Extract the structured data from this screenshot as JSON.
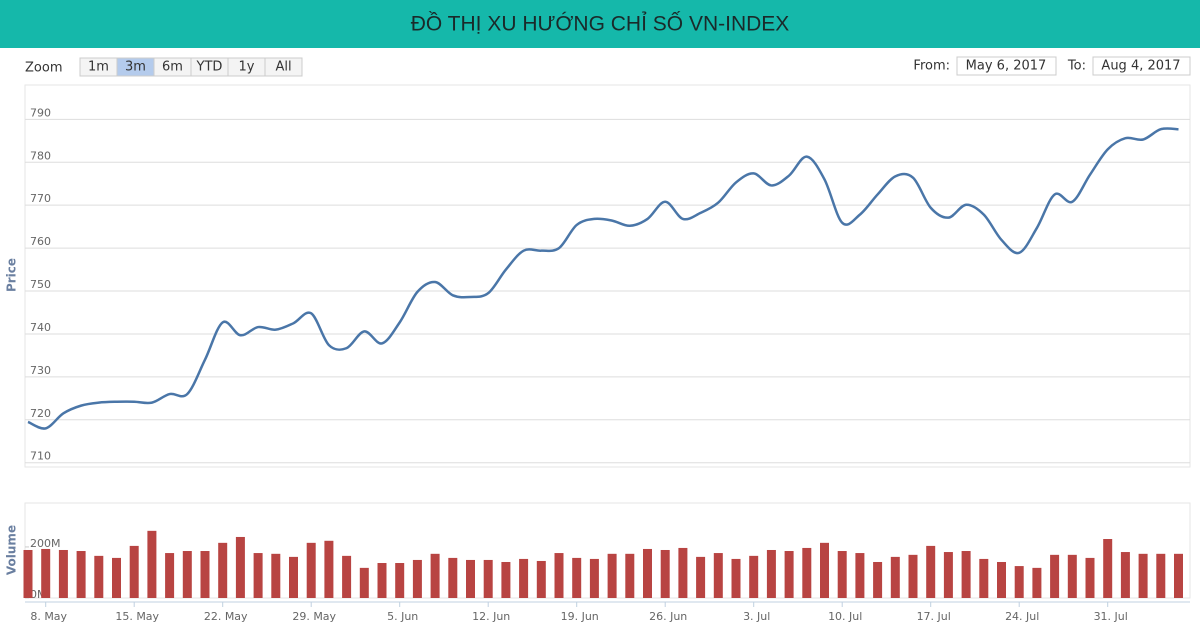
{
  "header": {
    "title": "ĐỒ THỊ XU HƯỚNG CHỈ SỐ VN-INDEX"
  },
  "toolbar": {
    "zoom_label": "Zoom",
    "zoom_buttons": [
      "1m",
      "3m",
      "6m",
      "YTD",
      "1y",
      "All"
    ],
    "selected": 1,
    "from_label": "From:",
    "from_date": "May 6, 2017",
    "to_label": "To:",
    "to_date": "Aug 4, 2017"
  },
  "chart_data": [
    {
      "type": "line",
      "y_label": "Price",
      "color": "#4a76a8",
      "grid": true,
      "ylim": [
        709,
        798
      ],
      "yticks": [
        710,
        720,
        730,
        740,
        750,
        760,
        770,
        780,
        790
      ],
      "values": [
        719.5,
        718,
        721.5,
        723.3,
        724,
        724.2,
        724.2,
        724,
        726,
        726,
        734,
        742.7,
        739.7,
        741.6,
        741,
        742.5,
        744.8,
        737.4,
        736.7,
        740.6,
        737.8,
        742.7,
        749.8,
        752.1,
        749,
        748.6,
        749.5,
        755,
        759.4,
        759.4,
        760,
        765.4,
        766.8,
        766.4,
        765.2,
        766.8,
        770.8,
        766.8,
        768.2,
        770.6,
        775.3,
        777.4,
        774.6,
        776.9,
        781.3,
        776,
        765.9,
        767.8,
        772.5,
        776.7,
        776.4,
        769.4,
        767.1,
        770.1,
        767.8,
        761.9,
        758.9,
        764.7,
        772.5,
        770.8,
        777.1,
        783,
        785.6,
        785.3,
        787.7,
        787.7
      ]
    },
    {
      "type": "bar",
      "y_label": "Volume",
      "color": "#b84442",
      "grid": false,
      "ylim": [
        0,
        372
      ],
      "yticks": [
        {
          "value": 0,
          "label": "0M"
        },
        {
          "value": 200,
          "label": "200M"
        }
      ],
      "categories": [
        null,
        "8. May",
        null,
        null,
        null,
        null,
        "15. May",
        null,
        null,
        null,
        null,
        "22. May",
        null,
        null,
        null,
        null,
        "29. May",
        null,
        null,
        null,
        null,
        "5. Jun",
        null,
        null,
        null,
        null,
        "12. Jun",
        null,
        null,
        null,
        null,
        "19. Jun",
        null,
        null,
        null,
        null,
        "26. Jun",
        null,
        null,
        null,
        null,
        "3. Jul",
        null,
        null,
        null,
        null,
        "10. Jul",
        null,
        null,
        null,
        null,
        "17. Jul",
        null,
        null,
        null,
        null,
        "24. Jul",
        null,
        null,
        null,
        null,
        "31. Jul",
        null,
        null,
        null,
        null
      ],
      "values": [
        188,
        192,
        188,
        184,
        165,
        157,
        204,
        263,
        176,
        184,
        184,
        216,
        239,
        176,
        173,
        161,
        216,
        224,
        165,
        118,
        137,
        137,
        149,
        173,
        157,
        149,
        149,
        141,
        153,
        145,
        176,
        157,
        153,
        173,
        173,
        192,
        188,
        196,
        161,
        176,
        153,
        165,
        188,
        184,
        196,
        216,
        184,
        176,
        141,
        161,
        169,
        204,
        180,
        184,
        153,
        141,
        125,
        118,
        169,
        169,
        157,
        231,
        180,
        173,
        173,
        173
      ]
    }
  ]
}
